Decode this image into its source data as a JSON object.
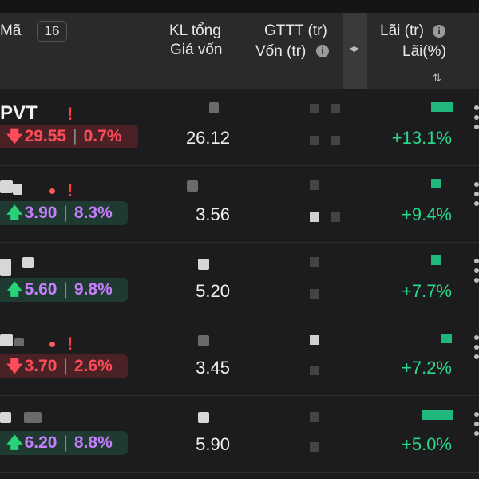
{
  "header": {
    "col_symbol": "Mã",
    "count": "16",
    "col_kl_line1": "KL tổng",
    "col_kl_line2": "Giá vốn",
    "col_gttt_line1": "GTTT (tr)",
    "col_gttt_line2": "Vốn (tr)",
    "col_profit_line1": "Lãi (tr)",
    "col_profit_line2": "Lãi(%)",
    "info_glyph": "i",
    "splitter_glyph": "◀▶",
    "sort_glyph": "⇅"
  },
  "rows": [
    {
      "symbol": "PVT",
      "direction": "down",
      "price": "29.55",
      "change": "0.7%",
      "cost": "26.12",
      "profit_pct": "+13.1%"
    },
    {
      "symbol": "",
      "direction": "up",
      "price": "3.90",
      "change": "8.3%",
      "cost": "3.56",
      "profit_pct": "+9.4%"
    },
    {
      "symbol": "",
      "direction": "up",
      "price": "5.60",
      "change": "9.8%",
      "cost": "5.20",
      "profit_pct": "+7.7%"
    },
    {
      "symbol": "",
      "direction": "down",
      "price": "3.70",
      "change": "2.6%",
      "cost": "3.45",
      "profit_pct": "+7.2%"
    },
    {
      "symbol": "",
      "direction": "up",
      "price": "6.20",
      "change": "8.8%",
      "cost": "5.90",
      "profit_pct": "+5.0%"
    }
  ],
  "colors": {
    "down": "#ff4c5a",
    "up_arrow": "#29d17a",
    "up_change": "#c77dff",
    "profit": "#27d98a",
    "alert": "#ff3b3b"
  },
  "icons": {
    "down_arrow": "down-arrow-icon",
    "up_arrow": "up-arrow-icon",
    "alert": "exclamation-icon",
    "more": "more-vertical-icon"
  }
}
